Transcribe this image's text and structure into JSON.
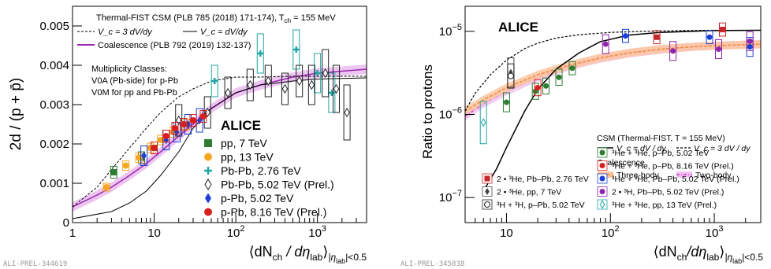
{
  "chart_data": [
    {
      "type": "scatter",
      "x_scale": "log",
      "y_scale": "linear",
      "xlim": [
        1,
        4000
      ],
      "ylim": [
        0,
        0.0055
      ],
      "grid": false,
      "ylabel": "2d / (p + p̄)",
      "xlabel": "⟨dN_ch / dη_lab⟩_|η_lab|<0.5",
      "xlabel_parts": {
        "main": "⟨dN",
        "sub1": "ch",
        "mid": " / dη",
        "sub2": "lab",
        "end": "⟩",
        "sub3": "|η",
        "sub4": "lab",
        "end2": "|<0.5"
      },
      "x_ticks": [
        {
          "v": 1,
          "label": "1"
        },
        {
          "v": 10,
          "label": "10"
        },
        {
          "v": 100,
          "label": "10",
          "exp": "2"
        },
        {
          "v": 1000,
          "label": "10",
          "exp": "3"
        }
      ],
      "y_ticks": [
        {
          "v": 0,
          "label": "0"
        },
        {
          "v": 0.001,
          "label": "0.001"
        },
        {
          "v": 0.002,
          "label": "0.002"
        },
        {
          "v": 0.003,
          "label": "0.003"
        },
        {
          "v": 0.004,
          "label": "0.004"
        },
        {
          "v": 0.005,
          "label": "0.005"
        }
      ],
      "watermark": "ALI-PREL-344619",
      "model_text": {
        "title": "Thermal-FIST CSM (PLB 785 (2018) 171-174), T",
        "title_sub": "ch",
        "title_end": " = 155 MeV",
        "vc3": "V_c = 3 dV/dy",
        "vc1": "V_c = dV/dy",
        "coal": "Coalescence (PLB 792 (2019) 132-137)"
      },
      "mult_text": [
        "Multiplicity Classes:",
        "V0A (Pb-side) for p-Pb",
        "V0M for pp and Pb-Pb"
      ],
      "experiment": "ALICE",
      "legend": [
        {
          "label": "pp, 7 TeV",
          "color": "#2e7d32",
          "marker": "square"
        },
        {
          "label": "pp, 13 TeV",
          "color": "#f5a623",
          "marker": "circle"
        },
        {
          "label": "Pb-Pb, 2.76 TeV",
          "color": "#1fa5a5",
          "marker": "cross"
        },
        {
          "label": "Pb-Pb, 5.02 TeV (Prel.)",
          "color": "#222222",
          "marker": "diamond-open"
        },
        {
          "label": "p-Pb, 5.02 TeV",
          "color": "#1a3fd8",
          "marker": "diamond"
        },
        {
          "label": "p-Pb, 8.16 TeV (Prel.)",
          "color": "#d62020",
          "marker": "circle"
        }
      ],
      "curves": {
        "csm_vc3": {
          "x": [
            1,
            2,
            3,
            5,
            8,
            12,
            20,
            30,
            50,
            100,
            200,
            500,
            1000,
            4000
          ],
          "y": [
            0.0004,
            0.0009,
            0.00135,
            0.0019,
            0.0024,
            0.0028,
            0.0032,
            0.0034,
            0.0036,
            0.0037,
            0.0037,
            0.00372,
            0.00372,
            0.00372
          ]
        },
        "csm_vc1": {
          "x": [
            1,
            3,
            5,
            8,
            12,
            20,
            30,
            50,
            100,
            200,
            500,
            1000,
            4000
          ],
          "y": [
            0.0001,
            0.00028,
            0.0005,
            0.0008,
            0.0012,
            0.0018,
            0.0024,
            0.0029,
            0.0033,
            0.0035,
            0.0036,
            0.00365,
            0.00368
          ]
        },
        "coalescence": {
          "x": [
            1,
            2,
            3,
            5,
            8,
            12,
            20,
            30,
            50,
            100,
            200,
            500,
            1000,
            4000
          ],
          "y": [
            0.0004,
            0.0007,
            0.0009,
            0.0012,
            0.0015,
            0.0018,
            0.0022,
            0.0025,
            0.0029,
            0.0033,
            0.0035,
            0.0037,
            0.0038,
            0.0039
          ]
        },
        "coal_halfwidth": 0.00012
      },
      "series": [
        {
          "name": "pp, 7 TeV",
          "points": [
            {
              "x": 3.2,
              "y": 0.00128,
              "e": 0.00015
            },
            {
              "x": 7.0,
              "y": 0.00165,
              "e": 0.00015
            },
            {
              "x": 10.0,
              "y": 0.0019,
              "e": 0.00015
            }
          ]
        },
        {
          "name": "pp, 13 TeV",
          "points": [
            {
              "x": 2.6,
              "y": 0.0009,
              "e": 0.0001
            },
            {
              "x": 4.5,
              "y": 0.00145,
              "e": 0.00012
            },
            {
              "x": 6.5,
              "y": 0.00165,
              "e": 0.00012
            },
            {
              "x": 9.0,
              "y": 0.0019,
              "e": 0.00012
            },
            {
              "x": 12.0,
              "y": 0.0021,
              "e": 0.00012
            },
            {
              "x": 17.0,
              "y": 0.0023,
              "e": 0.00013
            },
            {
              "x": 25.0,
              "y": 0.0025,
              "e": 0.00013
            }
          ]
        },
        {
          "name": "Pb-Pb, 2.76 TeV",
          "points": [
            {
              "x": 55,
              "y": 0.0036,
              "e": 0.0004
            },
            {
              "x": 200,
              "y": 0.0043,
              "e": 0.0005
            },
            {
              "x": 550,
              "y": 0.0044,
              "e": 0.0005
            },
            {
              "x": 1000,
              "y": 0.0038,
              "e": 0.0005
            },
            {
              "x": 1500,
              "y": 0.0033,
              "e": 0.0005
            }
          ]
        },
        {
          "name": "Pb-Pb, 5.02 TeV (Prel.)",
          "points": [
            {
              "x": 20,
              "y": 0.0026,
              "e": 0.0004
            },
            {
              "x": 45,
              "y": 0.0028,
              "e": 0.0004
            },
            {
              "x": 80,
              "y": 0.0033,
              "e": 0.0004
            },
            {
              "x": 150,
              "y": 0.0035,
              "e": 0.0004
            },
            {
              "x": 250,
              "y": 0.0036,
              "e": 0.0004
            },
            {
              "x": 400,
              "y": 0.0034,
              "e": 0.0004
            },
            {
              "x": 600,
              "y": 0.0036,
              "e": 0.0004
            },
            {
              "x": 850,
              "y": 0.0035,
              "e": 0.0005
            },
            {
              "x": 1250,
              "y": 0.0038,
              "e": 0.0006
            },
            {
              "x": 1700,
              "y": 0.0034,
              "e": 0.0006
            },
            {
              "x": 2300,
              "y": 0.0028,
              "e": 0.0007
            }
          ]
        },
        {
          "name": "p-Pb, 5.02 TeV",
          "points": [
            {
              "x": 7.5,
              "y": 0.0017,
              "e": 0.00025
            },
            {
              "x": 14,
              "y": 0.0021,
              "e": 0.00025
            },
            {
              "x": 19,
              "y": 0.0023,
              "e": 0.00025
            },
            {
              "x": 26,
              "y": 0.0025,
              "e": 0.00025
            },
            {
              "x": 36,
              "y": 0.0026,
              "e": 0.0003
            }
          ]
        },
        {
          "name": "p-Pb, 8.16 TeV (Prel.)",
          "points": [
            {
              "x": 10,
              "y": 0.0019,
              "e": 0.00015
            },
            {
              "x": 14,
              "y": 0.0022,
              "e": 0.00015
            },
            {
              "x": 18,
              "y": 0.0024,
              "e": 0.00015
            },
            {
              "x": 23,
              "y": 0.0025,
              "e": 0.00015
            },
            {
              "x": 30,
              "y": 0.0026,
              "e": 0.00015
            },
            {
              "x": 40,
              "y": 0.0027,
              "e": 0.00015
            }
          ]
        }
      ]
    },
    {
      "type": "scatter",
      "x_scale": "log",
      "y_scale": "log",
      "xlim": [
        4,
        2800
      ],
      "ylim": [
        5e-08,
        2e-05
      ],
      "grid": false,
      "ylabel": "Ratio to protons",
      "xlabel": "⟨dN_ch/dη_lab⟩_|η_lab|<0.5",
      "xlabel_parts": {
        "main": "⟨dN",
        "sub1": "ch",
        "mid": "/dη",
        "sub2": "lab",
        "end": "⟩",
        "sub3": "|η",
        "sub4": "lab",
        "end2": "|<0.5"
      },
      "x_ticks": [
        {
          "v": 10,
          "label": "10"
        },
        {
          "v": 100,
          "label": "10",
          "exp": "2"
        },
        {
          "v": 1000,
          "label": "10",
          "exp": "3"
        }
      ],
      "y_ticks": [
        {
          "v": 1e-07,
          "label": "10",
          "exp": "−7"
        },
        {
          "v": 1e-06,
          "label": "10",
          "exp": "−6"
        },
        {
          "v": 1e-05,
          "label": "10",
          "exp": "−5"
        }
      ],
      "watermark": "ALI-PREL-345838",
      "experiment": "ALICE",
      "model_text": {
        "title": "CSM (Thermal-FIST, T = 155 MeV",
        "vc1": "V_c = dV / dy",
        "vc3": "V_c = 3 dV / dy",
        "coal": "Coalescence",
        "three": "Three-body",
        "two": "Two-body"
      },
      "legend_right": [
        {
          "label": "³He + ³He, p–Pb, 5.02 TeV",
          "color": "#2e7d32",
          "marker": "circle"
        },
        {
          "label": "³He + ³He, p–Pb, 8.16 TeV (Prel.)",
          "color": "#d62020",
          "marker": "circle"
        },
        {
          "label": "³He + ³He, Pb–Pb, 5.02 TeV (Prel.)",
          "color": "#1a3fd8",
          "marker": "circle"
        },
        {
          "label": "2 • ³H, Pb–Pb, 5.02 TeV (Prel.)",
          "color": "#8e24aa",
          "marker": "circle"
        },
        {
          "label": "³He + ³He, pp, 13 TeV (Prel.)",
          "color": "#1fa5a5",
          "marker": "diamond-open"
        }
      ],
      "legend_left": [
        {
          "label": "2 • ³He, Pb–Pb, 2.76 TeV",
          "color": "#c62828",
          "marker": "square"
        },
        {
          "label": "2 • ³He, pp, 7 TeV",
          "color": "#444444",
          "marker": "diamond"
        },
        {
          "label": "³H + ³H, p–Pb, 5.02 TeV",
          "color": "#222222",
          "marker": "circle-open"
        }
      ],
      "curves": {
        "csm_vc1": {
          "x": [
            6,
            8,
            10,
            15,
            20,
            30,
            50,
            80,
            150,
            300,
            600,
            1000,
            2800
          ],
          "y": [
            1.2e-07,
            2.2e-07,
            4e-07,
            1.1e-06,
            2e-06,
            3.5e-06,
            5.5e-06,
            7.5e-06,
            9e-06,
            9.7e-06,
            1e-05,
            1.02e-05,
            1.03e-05
          ]
        },
        "csm_vc3": {
          "x": [
            4,
            5,
            7,
            10,
            15,
            20,
            30,
            50,
            100,
            200,
            500,
            1000,
            2800
          ],
          "y": [
            1.1e-06,
            1.8e-06,
            3e-06,
            4.5e-06,
            6.2e-06,
            7.2e-06,
            8.3e-06,
            9.1e-06,
            9.7e-06,
            1e-05,
            1.02e-05,
            1.03e-05,
            1.03e-05
          ]
        },
        "three_body": {
          "x": [
            4,
            6,
            10,
            20,
            40,
            80,
            150,
            300,
            600,
            1000,
            2800
          ],
          "y": [
            1.1e-06,
            1.5e-06,
            2.1e-06,
            3e-06,
            3.9e-06,
            4.8e-06,
            5.5e-06,
            6.1e-06,
            6.5e-06,
            6.7e-06,
            7e-06
          ]
        },
        "two_body": {
          "x": [
            4,
            6,
            10,
            20,
            40,
            80,
            150,
            300,
            600,
            1000,
            2800
          ],
          "y": [
            9.5e-07,
            1.35e-06,
            1.9e-06,
            2.8e-06,
            3.8e-06,
            4.7e-06,
            5.4e-06,
            6e-06,
            6.5e-06,
            6.7e-06,
            7e-06
          ]
        },
        "band_factor": 1.12
      },
      "series": [
        {
          "name": "³He + ³He, p–Pb, 5.02 TeV",
          "points": [
            {
              "x": 10,
              "y": 1.4e-06,
              "e": 1.3
            },
            {
              "x": 19,
              "y": 1.9e-06,
              "e": 1.25
            },
            {
              "x": 24,
              "y": 2.2e-06,
              "e": 1.25
            },
            {
              "x": 32,
              "y": 2.8e-06,
              "e": 1.25
            },
            {
              "x": 43,
              "y": 3.6e-06,
              "e": 1.2
            }
          ]
        },
        {
          "name": "³He + ³He, p–Pb, 8.16 TeV (Prel.)",
          "points": [
            {
              "x": 20,
              "y": 2.1e-06,
              "e": 1.25
            }
          ]
        },
        {
          "name": "³He + ³He, Pb–Pb, 5.02 TeV (Prel.)",
          "points": [
            {
              "x": 140,
              "y": 8.8e-06,
              "e": 1.2
            },
            {
              "x": 900,
              "y": 8.5e-06,
              "e": 1.2
            },
            {
              "x": 2200,
              "y": 6.5e-06,
              "e": 1.3
            }
          ]
        },
        {
          "name": "2 • ³H, Pb–Pb, 5.02 TeV (Prel.)",
          "points": [
            {
              "x": 90,
              "y": 7e-06,
              "e": 1.3
            },
            {
              "x": 400,
              "y": 5.8e-06,
              "e": 1.3
            },
            {
              "x": 1100,
              "y": 6.1e-06,
              "e": 1.3
            },
            {
              "x": 2200,
              "y": 7.6e-06,
              "e": 1.3
            }
          ]
        },
        {
          "name": "³He + ³He, pp, 13 TeV (Prel.)",
          "points": [
            {
              "x": 6,
              "y": 8e-07,
              "e": 1.8
            }
          ]
        },
        {
          "name": "2 • ³He, Pb–Pb, 2.76 TeV",
          "points": [
            {
              "x": 280,
              "y": 8.5e-06,
              "e": 1.2
            },
            {
              "x": 1200,
              "y": 1.05e-05,
              "e": 1.2
            }
          ]
        },
        {
          "name": "2 • ³He, pp, 7 TeV",
          "points": [
            {
              "x": 11,
              "y": 3.2e-06,
              "e": 1.5
            }
          ]
        },
        {
          "name": "³H + ³H, p–Pb, 5.02 TeV",
          "points": [
            {
              "x": 11,
              "y": 2.9e-06,
              "e": 1.4
            }
          ]
        }
      ]
    }
  ]
}
